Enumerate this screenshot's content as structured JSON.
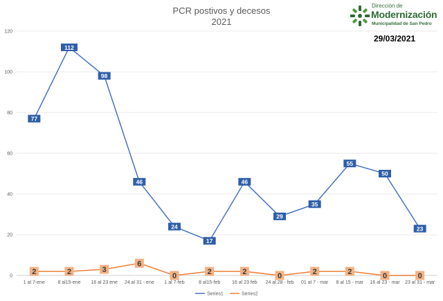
{
  "header": {
    "title": "PCR postivos y decesos",
    "subtitle": "2021",
    "date": "29/03/2021"
  },
  "logo": {
    "line1": "Dirección de",
    "line2": "Modernización",
    "line3": "Municipalidad de San Pedro",
    "color": "#2f6b36"
  },
  "chart_data": {
    "type": "line",
    "title": "PCR postivos y decesos",
    "subtitle": "2021",
    "categories": [
      "1 al 7-ene",
      "8 al15-ene",
      "16 al 23 ene",
      "24 al 31 - ene",
      "1 al 7-feb",
      "8 al15-feb",
      "16 al 23 feb",
      "24 al 28 - feb",
      "01 al 7 - mar",
      "8 al 15 - mar",
      "16 al 23 - mar",
      "23 al 31 - mar"
    ],
    "series": [
      {
        "name": "Series1",
        "values": [
          77,
          112,
          98,
          46,
          24,
          17,
          46,
          29,
          35,
          55,
          50,
          23
        ],
        "color": "#4472c4"
      },
      {
        "name": "Series2",
        "values": [
          2,
          2,
          3,
          6,
          0,
          2,
          2,
          0,
          2,
          2,
          0,
          0
        ],
        "color": "#ed7d31"
      }
    ],
    "ylim": [
      0,
      120
    ],
    "yticks": [
      0,
      20,
      40,
      60,
      80,
      100,
      120
    ],
    "grid": true,
    "legend": "bottom"
  }
}
